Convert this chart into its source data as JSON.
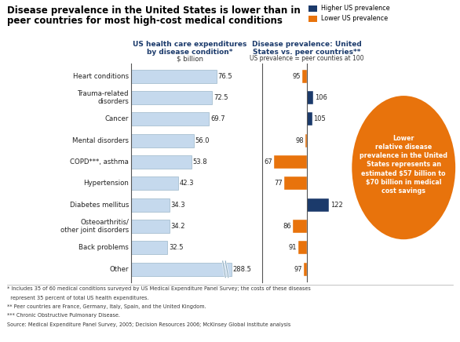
{
  "title_line1": "Disease prevalence in the United States is lower than in",
  "title_line2": "peer countries for most high-cost medical conditions",
  "categories": [
    "Heart conditions",
    "Trauma-related\ndisorders",
    "Cancer",
    "Mental disorders",
    "COPD***, asthma",
    "Hypertension",
    "Diabetes mellitus",
    "Osteoarthritis/\nother joint disorders",
    "Back problems",
    "Other"
  ],
  "expenditure_values": [
    76.5,
    72.5,
    69.7,
    56.0,
    53.8,
    42.3,
    34.3,
    34.2,
    32.5,
    288.5
  ],
  "prevalence_values": [
    95,
    106,
    105,
    98,
    67,
    77,
    122,
    86,
    91,
    97
  ],
  "prevalence_colors": [
    "#E8730C",
    "#1B3A6B",
    "#1B3A6B",
    "#E8730C",
    "#E8730C",
    "#E8730C",
    "#1B3A6B",
    "#E8730C",
    "#E8730C",
    "#E8730C"
  ],
  "expenditure_bar_color": "#C5D9ED",
  "expenditure_bar_edge": "#8AAABF",
  "left_header1": "US health care expenditures",
  "left_header2": "by disease condition*",
  "left_header3": "$ billion",
  "right_header1": "Disease prevalence: United",
  "right_header2": "States vs. peer countries**",
  "right_header3": "US prevalence = peer counties at 100",
  "legend_higher": "Higher US prevalence",
  "legend_lower": "Lower US prevalence",
  "legend_higher_color": "#1B3A6B",
  "legend_lower_color": "#E8730C",
  "annotation_text": "Lower\nrelative disease\nprevalence in the United\nStates represents an\nestimated $57 billion to\n$70 billion in medical\ncost savings",
  "annotation_color": "#E8730C",
  "footnote1": "* Includes 35 of 60 medical conditions surveyed by US Medical Expenditure Panel Survey; the costs of these diseases",
  "footnote2": "  represent 35 percent of total US health expenditures.",
  "footnote3": "** Peer countries are France, Germany, Italy, Spain, and the United Kingdom.",
  "footnote4": "*** Chronic Obstructive Pulmonary Disease.",
  "footnote5": "Source: Medical Expenditure Panel Survey, 2005; Decision Resources 2006; McKinsey Global Institute analysis",
  "background_color": "#FFFFFF"
}
